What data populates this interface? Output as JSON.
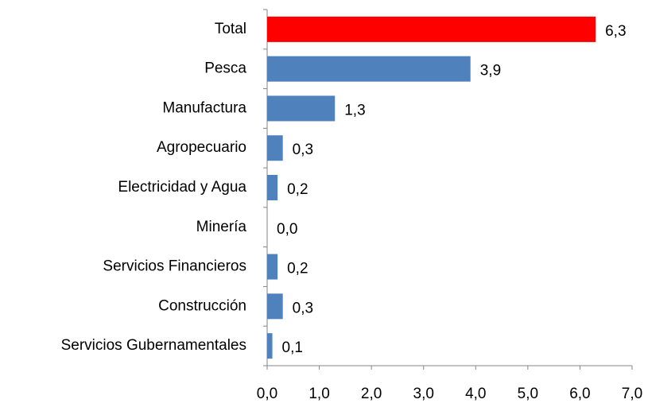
{
  "chart_data": {
    "type": "bar",
    "orientation": "horizontal",
    "categories": [
      "Total",
      "Pesca",
      "Manufactura",
      "Agropecuario",
      "Electricidad y Agua",
      "Minería",
      "Servicios Financieros",
      "Construcción",
      "Servicios Gubernamentales"
    ],
    "values": [
      6.3,
      3.9,
      1.3,
      0.3,
      0.2,
      0.0,
      0.2,
      0.3,
      0.1
    ],
    "value_labels": [
      "6,3",
      "3,9",
      "1,3",
      "0,3",
      "0,2",
      "0,0",
      "0,2",
      "0,3",
      "0,1"
    ],
    "colors": [
      "#ff0000",
      "#4f81bd",
      "#4f81bd",
      "#4f81bd",
      "#4f81bd",
      "#4f81bd",
      "#4f81bd",
      "#4f81bd",
      "#4f81bd"
    ],
    "xlim": [
      0,
      7
    ],
    "xticks": [
      {
        "value": 0,
        "label": "0,0"
      },
      {
        "value": 1,
        "label": "1,0"
      },
      {
        "value": 2,
        "label": "2,0"
      },
      {
        "value": 3,
        "label": "3,0"
      },
      {
        "value": 4,
        "label": "4,0"
      },
      {
        "value": 5,
        "label": "5,0"
      },
      {
        "value": 6,
        "label": "6,0"
      },
      {
        "value": 7,
        "label": "7,0"
      }
    ],
    "grid": false
  }
}
